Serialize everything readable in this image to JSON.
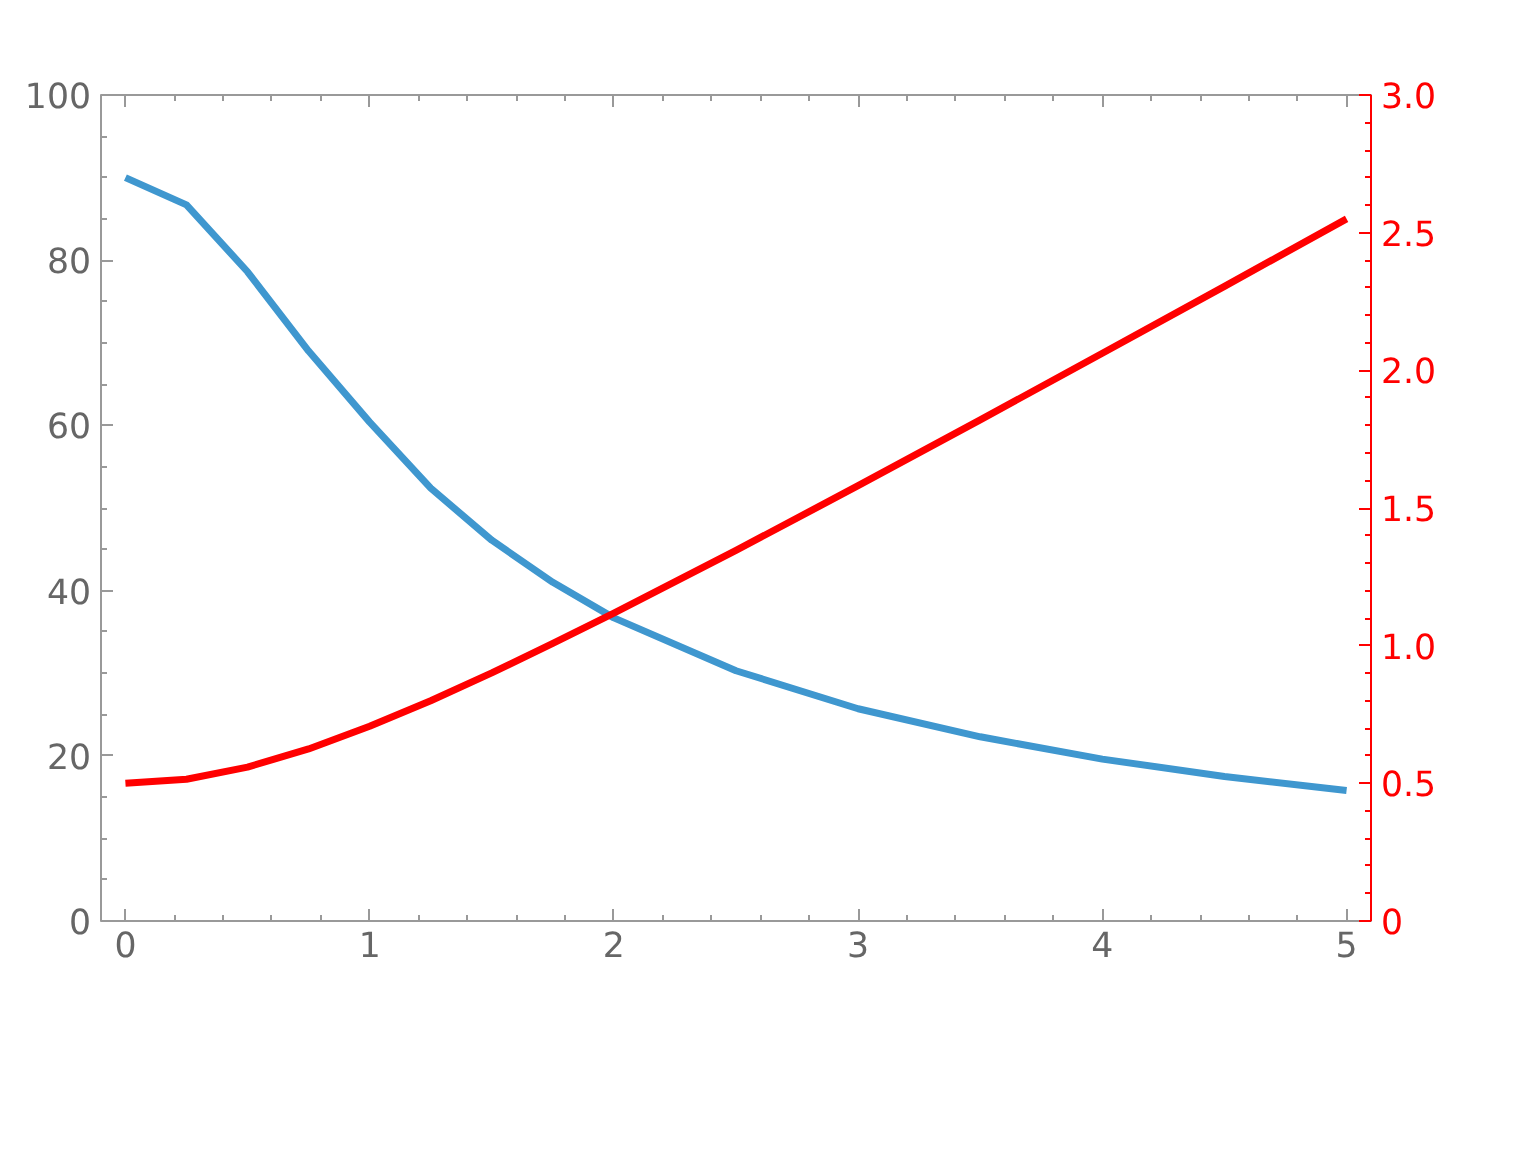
{
  "chart_data": {
    "type": "line",
    "xlim": [
      -0.1,
      5.1
    ],
    "xticks": [
      0,
      1,
      2,
      3,
      4,
      5
    ],
    "ylim": [
      0,
      100
    ],
    "yticks": [
      0,
      20,
      40,
      60,
      80,
      100
    ],
    "y2lim": [
      0,
      3
    ],
    "y2ticks": [
      0,
      0.5,
      {
        "value": 1,
        "label": "1.0"
      },
      1.5,
      {
        "value": 2,
        "label": "2.0"
      },
      2.5,
      {
        "value": 3,
        "label": "3.0"
      }
    ],
    "grid": false,
    "marker": "none",
    "line_style": "solid",
    "series": [
      {
        "color": "#3f97cf",
        "x": [
          0,
          0.25,
          0.5,
          0.75,
          1,
          1.25,
          1.5,
          1.75,
          2,
          2.5,
          3,
          3.5,
          4,
          4.5,
          5
        ],
        "values": [
          90,
          86.7,
          78.6,
          69.0,
          60.4,
          52.4,
          46.1,
          41.0,
          36.7,
          30.3,
          25.7,
          22.3,
          19.6,
          17.5,
          15.8
        ]
      },
      {
        "color": "#ff0000",
        "axis": "y2",
        "x": [
          0,
          0.25,
          0.5,
          0.75,
          1,
          1.25,
          1.5,
          1.75,
          2,
          2.5,
          3,
          3.5,
          4,
          4.5,
          5
        ],
        "values": [
          0.5,
          0.515,
          0.559,
          0.625,
          0.707,
          0.8,
          0.901,
          1.008,
          1.118,
          1.346,
          1.581,
          1.82,
          2.062,
          2.305,
          2.55
        ]
      }
    ]
  }
}
